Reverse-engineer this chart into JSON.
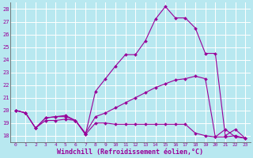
{
  "xlabel": "Windchill (Refroidissement éolien,°C)",
  "xlim": [
    -0.5,
    23.5
  ],
  "ylim": [
    17.5,
    28.5
  ],
  "yticks": [
    18,
    19,
    20,
    21,
    22,
    23,
    24,
    25,
    26,
    27,
    28
  ],
  "xticks": [
    0,
    1,
    2,
    3,
    4,
    5,
    6,
    7,
    8,
    9,
    10,
    11,
    12,
    13,
    14,
    15,
    16,
    17,
    18,
    19,
    20,
    21,
    22,
    23
  ],
  "bg_color": "#b8e8f0",
  "line_color": "#990099",
  "grid_color": "#ffffff",
  "line1_x": [
    0,
    1,
    2,
    3,
    4,
    5,
    6,
    7,
    8,
    9,
    10,
    11,
    12,
    13,
    14,
    15,
    16,
    17,
    18,
    19,
    20,
    21,
    22,
    23
  ],
  "line1_y": [
    20.0,
    19.8,
    18.6,
    19.2,
    19.2,
    19.3,
    19.2,
    18.1,
    19.0,
    19.0,
    18.9,
    18.9,
    18.9,
    18.9,
    18.9,
    18.9,
    18.9,
    18.9,
    18.2,
    18.0,
    17.9,
    17.9,
    18.0,
    17.8
  ],
  "line2_x": [
    0,
    1,
    2,
    3,
    4,
    5,
    6,
    7,
    8,
    9,
    10,
    11,
    12,
    13,
    14,
    15,
    16,
    17,
    18,
    19,
    20,
    21,
    22,
    23
  ],
  "line2_y": [
    20.0,
    19.8,
    18.6,
    19.4,
    19.5,
    19.5,
    19.2,
    18.2,
    19.5,
    19.8,
    20.2,
    20.6,
    21.0,
    21.4,
    21.8,
    22.1,
    22.4,
    22.5,
    22.7,
    22.5,
    17.9,
    18.5,
    17.9,
    17.8
  ],
  "line3_x": [
    0,
    1,
    2,
    3,
    4,
    5,
    6,
    7,
    8,
    9,
    10,
    11,
    12,
    13,
    14,
    15,
    16,
    17,
    18,
    19,
    20,
    21,
    22,
    23
  ],
  "line3_y": [
    20.0,
    19.8,
    18.6,
    19.4,
    19.5,
    19.6,
    19.2,
    18.1,
    21.5,
    22.5,
    23.5,
    24.4,
    24.4,
    25.5,
    27.2,
    28.2,
    27.3,
    27.3,
    26.5,
    24.5,
    24.5,
    18.0,
    18.5,
    17.8
  ]
}
